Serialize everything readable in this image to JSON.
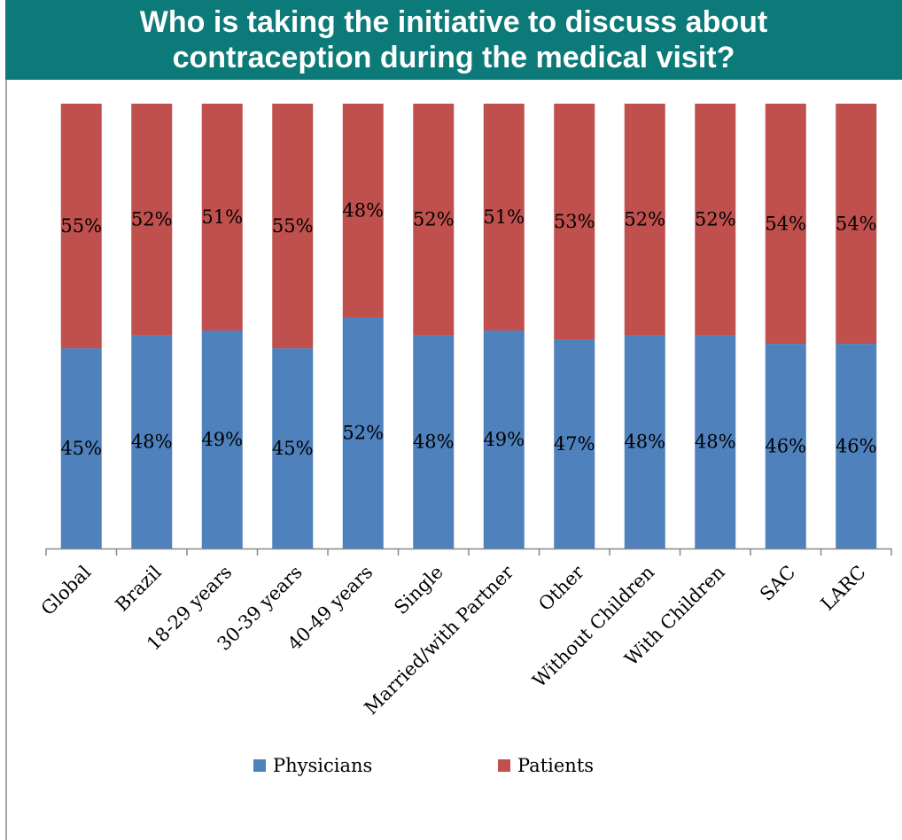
{
  "chart_data": {
    "type": "bar",
    "stacked": true,
    "percent_stacked": true,
    "title": [
      "Who is taking the initiative to discuss about",
      "contraception during the medical visit?"
    ],
    "categories": [
      "Global",
      "Brazil",
      "18-29 years",
      "30-39 years",
      "40-49 years",
      "Single",
      "Married/with Partner",
      "Other",
      "Without Children",
      "With Children",
      "SAC",
      "LARC"
    ],
    "series": [
      {
        "name": "Physicians",
        "color": "#4f81bd",
        "values": [
          45,
          48,
          49,
          45,
          52,
          48,
          49,
          47,
          48,
          48,
          46,
          46
        ],
        "labels": [
          "45%",
          "48%",
          "49%",
          "45%",
          "52%",
          "48%",
          "49%",
          "47%",
          "48%",
          "48%",
          "46%",
          "46%"
        ]
      },
      {
        "name": "Patients",
        "color": "#c0504d",
        "values": [
          55,
          52,
          51,
          55,
          48,
          52,
          51,
          53,
          52,
          52,
          54,
          54
        ],
        "labels": [
          "55%",
          "52%",
          "51%",
          "55%",
          "48%",
          "52%",
          "51%",
          "53%",
          "52%",
          "52%",
          "54%",
          "54%"
        ]
      }
    ],
    "ylim": [
      0,
      100
    ],
    "grid": false,
    "legend_position": "bottom"
  }
}
